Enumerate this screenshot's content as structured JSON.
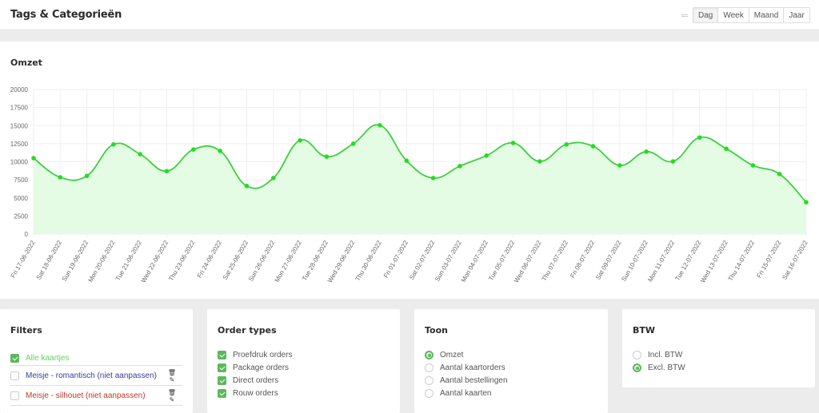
{
  "header": {
    "title": "Tags & Categorieën",
    "periods": [
      "Dag",
      "Week",
      "Maand",
      "Jaar"
    ],
    "active_period": "Dag"
  },
  "chart": {
    "title": "Omzet"
  },
  "chart_data": {
    "type": "line",
    "title": "Omzet",
    "xlabel": "",
    "ylabel": "",
    "ylim": [
      0,
      20000
    ],
    "yticks": [
      0,
      2500,
      5000,
      7500,
      10000,
      12500,
      15000,
      17500,
      20000
    ],
    "grid": true,
    "legend": "none",
    "fill": true,
    "line_color": "#3fcf3f",
    "fill_color": "#e3fce3",
    "categories": [
      "Fri 17-06-2022",
      "Sat 18-06-2022",
      "Sun 19-06-2022",
      "Mon 20-06-2022",
      "Tue 21-06-2022",
      "Wed 22-06-2022",
      "Thu 23-06-2022",
      "Fri 24-06-2022",
      "Sat 25-06-2022",
      "Sun 26-06-2022",
      "Mon 27-06-2022",
      "Tue 28-06-2022",
      "Wed 29-06-2022",
      "Thu 30-06-2022",
      "Fri 01-07-2022",
      "Sat 02-07-2022",
      "Sun 03-07-2022",
      "Mon 04-07-2022",
      "Tue 05-07-2022",
      "Wed 06-07-2022",
      "Thu 07-07-2022",
      "Fri 08-07-2022",
      "Sat 09-07-2022",
      "Sun 10-07-2022",
      "Mon 11-07-2022",
      "Tue 12-07-2022",
      "Wed 13-07-2022",
      "Thu 14-07-2022",
      "Fri 15-07-2022",
      "Sat 16-07-2022"
    ],
    "series": [
      {
        "name": "Omzet",
        "values": [
          10500,
          7850,
          8050,
          12400,
          11050,
          8700,
          11700,
          11500,
          6650,
          7750,
          12950,
          10700,
          12500,
          15050,
          10150,
          7750,
          9400,
          10850,
          12600,
          10050,
          12400,
          12150,
          9500,
          11400,
          10050,
          13350,
          11800,
          9500,
          8300,
          4400
        ]
      }
    ]
  },
  "filters": {
    "title": "Filters",
    "items": [
      {
        "label": "Alle kaartjes",
        "checked": true,
        "color": "#5cd65c"
      },
      {
        "label": "Meisje - romantisch (niet aanpassen)",
        "checked": false,
        "color": "#3a3aa0",
        "actions": [
          "trash-icon",
          "pencil-icon"
        ]
      },
      {
        "label": "Meisje - silhouet (niet aanpassen)",
        "checked": false,
        "color": "#c0392b",
        "actions": [
          "trash-icon",
          "pencil-icon"
        ]
      }
    ]
  },
  "order_types": {
    "title": "Order types",
    "items": [
      {
        "label": "Proefdruk orders",
        "checked": true
      },
      {
        "label": "Package orders",
        "checked": true
      },
      {
        "label": "Direct orders",
        "checked": true
      },
      {
        "label": "Rouw orders",
        "checked": true
      }
    ]
  },
  "toon": {
    "title": "Toon",
    "items": [
      {
        "label": "Omzet",
        "selected": true
      },
      {
        "label": "Aantal kaartorders",
        "selected": false
      },
      {
        "label": "Aantal bestellingen",
        "selected": false
      },
      {
        "label": "Aantal kaarten",
        "selected": false
      }
    ]
  },
  "btw": {
    "title": "BTW",
    "items": [
      {
        "label": "Incl. BTW",
        "selected": false
      },
      {
        "label": "Excl. BTW",
        "selected": true
      }
    ]
  },
  "icons": {
    "trash": "🗑",
    "pencil": "✎"
  }
}
